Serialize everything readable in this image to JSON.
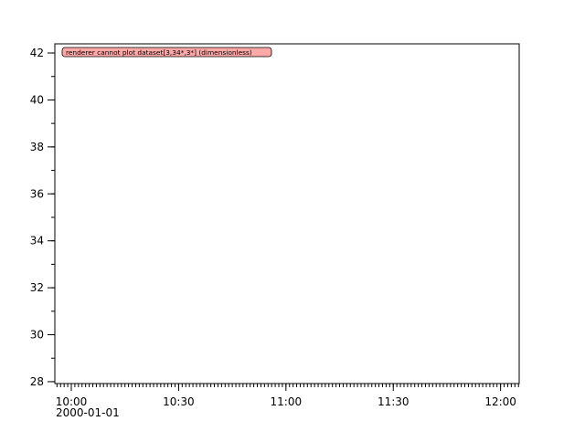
{
  "chart_data": {
    "type": "line",
    "title": "",
    "xlabel": "",
    "ylabel": "",
    "x_axis": {
      "type": "time",
      "range": [
        "09:55:24",
        "12:05:12"
      ],
      "tick_labels": [
        "10:00",
        "10:30",
        "11:00",
        "11:30",
        "12:00"
      ],
      "tick_minutes": [
        600,
        630,
        660,
        690,
        720
      ],
      "minor_tick_step_minutes": 1,
      "date_label": "2000-01-01"
    },
    "y_axis": {
      "range": [
        27.92,
        42.39
      ],
      "ticks": [
        28,
        30,
        32,
        34,
        36,
        38,
        40,
        42
      ],
      "tick_labels": [
        "28",
        "30",
        "32",
        "34",
        "36",
        "38",
        "40",
        "42"
      ],
      "minor_tick_step": 1
    },
    "series": [],
    "grid": false,
    "annotations": [
      {
        "text": "renderer cannot plot dataset[3,34*,3*] (dimensionless)",
        "placement": "top-left",
        "background": "#ffa8a8"
      }
    ]
  }
}
